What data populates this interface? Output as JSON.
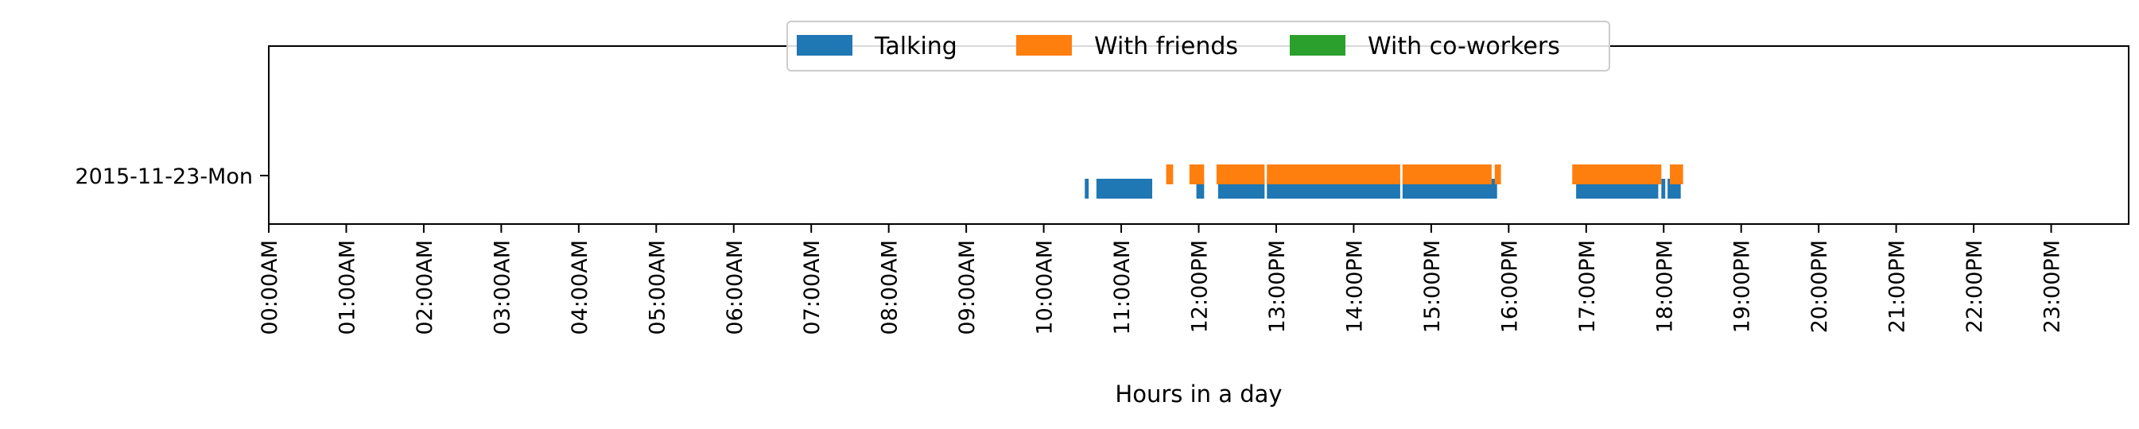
{
  "chart_data": {
    "type": "timeline",
    "xlabel": "Hours in a day",
    "ylabel": "",
    "title": "",
    "xlim": [
      0,
      24
    ],
    "x_ticks": [
      "00:00AM",
      "01:00AM",
      "02:00AM",
      "03:00AM",
      "04:00AM",
      "05:00AM",
      "06:00AM",
      "07:00AM",
      "08:00AM",
      "09:00AM",
      "10:00AM",
      "11:00AM",
      "12:00PM",
      "13:00PM",
      "14:00PM",
      "15:00PM",
      "16:00PM",
      "17:00PM",
      "18:00PM",
      "19:00PM",
      "20:00PM",
      "21:00PM",
      "22:00PM",
      "23:00PM"
    ],
    "rows": [
      "2015-11-23-Mon"
    ],
    "legend_position": "top-center",
    "grid": false,
    "series": [
      {
        "name": "Talking",
        "color": "#1f77b4",
        "intervals": [
          [
            10.53,
            10.58
          ],
          [
            10.68,
            11.4
          ],
          [
            11.97,
            12.07
          ],
          [
            12.25,
            12.85
          ],
          [
            12.88,
            14.6
          ],
          [
            14.63,
            15.85
          ],
          [
            16.87,
            17.93
          ],
          [
            17.97,
            18.02
          ],
          [
            18.05,
            18.22
          ]
        ]
      },
      {
        "name": "With friends",
        "color": "#ff7f0e",
        "intervals": [
          [
            11.58,
            11.67
          ],
          [
            11.88,
            12.07
          ],
          [
            12.23,
            12.85
          ],
          [
            12.88,
            14.6
          ],
          [
            14.63,
            15.78
          ],
          [
            15.82,
            15.9
          ],
          [
            16.82,
            17.97
          ],
          [
            18.08,
            18.25
          ]
        ]
      },
      {
        "name": "With co-workers",
        "color": "#2ca02c",
        "intervals": []
      }
    ]
  }
}
